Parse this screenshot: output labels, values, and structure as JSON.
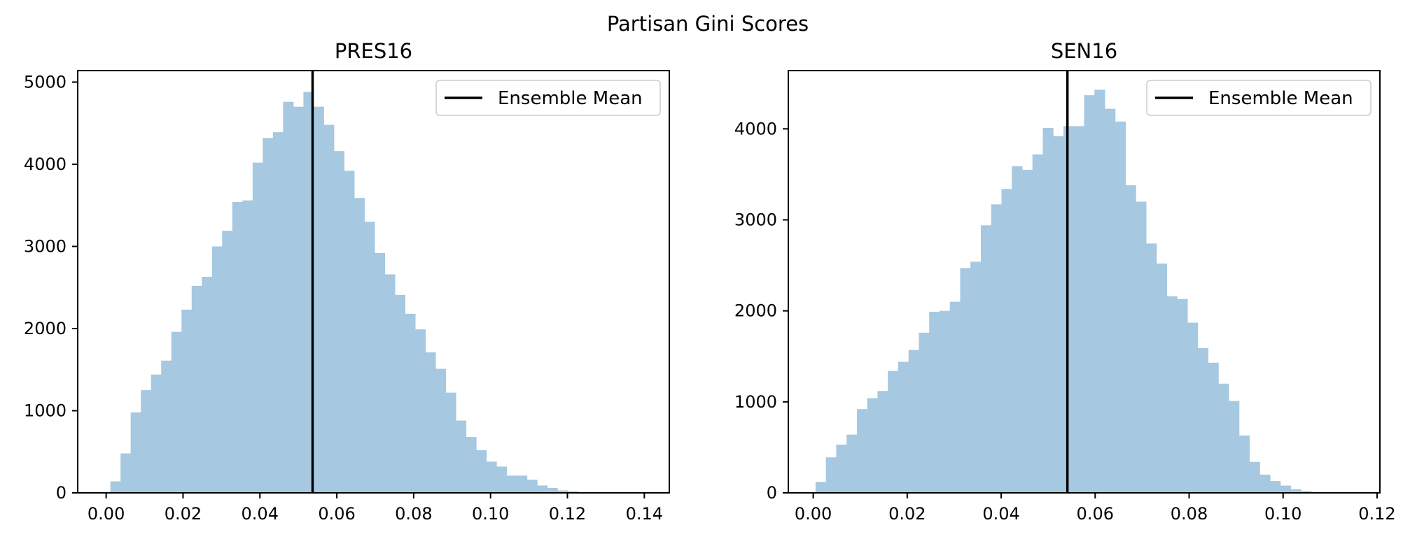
{
  "figure": {
    "suptitle": "Partisan Gini Scores"
  },
  "style": {
    "bar_color": "#a6c8e0",
    "mean_line_color": "#000000",
    "axes_color": "#000000"
  },
  "chart_data": [
    {
      "type": "histogram",
      "title": "PRES16",
      "xlabel": "",
      "ylabel": "",
      "xlim": [
        -0.0074,
        0.1465
      ],
      "ylim": [
        0,
        5140
      ],
      "xticks": [
        "0.00",
        "0.02",
        "0.04",
        "0.06",
        "0.08",
        "0.10",
        "0.12",
        "0.14"
      ],
      "xtick_values": [
        0.0,
        0.02,
        0.04,
        0.06,
        0.08,
        0.1,
        0.12,
        0.14
      ],
      "yticks": [
        "0",
        "1000",
        "2000",
        "3000",
        "4000",
        "5000"
      ],
      "ytick_values": [
        0,
        1000,
        2000,
        3000,
        4000,
        5000
      ],
      "bin_start": 0.0011,
      "bin_width": 0.002643,
      "values": [
        140,
        480,
        980,
        1250,
        1440,
        1610,
        1960,
        2230,
        2520,
        2630,
        3000,
        3190,
        3540,
        3560,
        4020,
        4320,
        4390,
        4760,
        4700,
        4880,
        4700,
        4480,
        4160,
        3920,
        3590,
        3300,
        2920,
        2660,
        2410,
        2180,
        1990,
        1710,
        1510,
        1220,
        880,
        680,
        520,
        380,
        320,
        210,
        210,
        160,
        90,
        60,
        30,
        20,
        10,
        5,
        3,
        2
      ],
      "mean": 0.0537,
      "legend": {
        "label": "Ensemble Mean",
        "position": "upper right"
      }
    },
    {
      "type": "histogram",
      "title": "SEN16",
      "xlabel": "",
      "ylabel": "",
      "xlim": [
        -0.0053,
        0.1206
      ],
      "ylim": [
        0,
        4640
      ],
      "xticks": [
        "0.00",
        "0.02",
        "0.04",
        "0.06",
        "0.08",
        "0.10",
        "0.12"
      ],
      "xtick_values": [
        0.0,
        0.02,
        0.04,
        0.06,
        0.08,
        0.1,
        0.12
      ],
      "yticks": [
        "0",
        "1000",
        "2000",
        "3000",
        "4000"
      ],
      "ytick_values": [
        0,
        1000,
        2000,
        3000,
        4000
      ],
      "bin_start": 0.0005,
      "bin_width": 0.002198,
      "values": [
        120,
        390,
        530,
        640,
        920,
        1040,
        1120,
        1340,
        1440,
        1570,
        1760,
        1990,
        2000,
        2100,
        2470,
        2540,
        2940,
        3170,
        3340,
        3590,
        3550,
        3720,
        4010,
        3920,
        4030,
        4030,
        4370,
        4430,
        4220,
        4080,
        3380,
        3200,
        2740,
        2520,
        2160,
        2130,
        1870,
        1590,
        1430,
        1200,
        1010,
        630,
        340,
        200,
        130,
        80,
        40,
        20
      ],
      "mean": 0.0541,
      "legend": {
        "label": "Ensemble Mean",
        "position": "upper right"
      }
    }
  ]
}
